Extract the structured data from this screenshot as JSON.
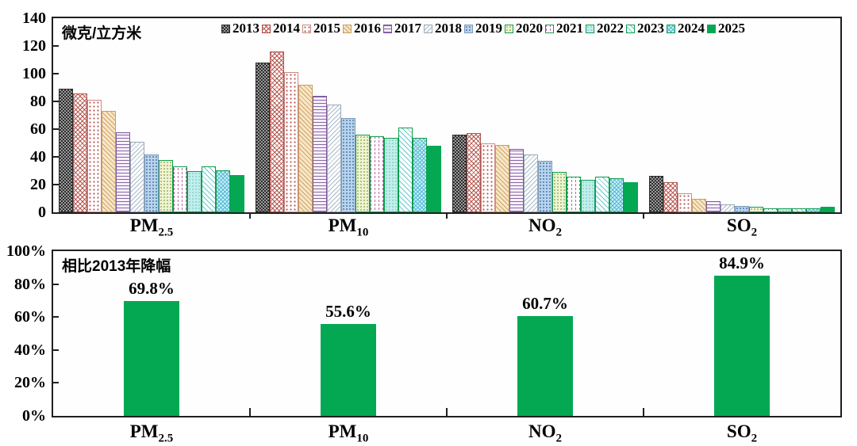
{
  "charts": {
    "top": {
      "unit_label": "微克/立方米"
    },
    "bottom": {
      "title": "相比2013年降幅"
    }
  },
  "accent_green": "#04a853",
  "axis_color": "#1f1f1f",
  "chart_data": [
    {
      "type": "bar",
      "title": "微克/立方米",
      "ylabel": "微克/立方米",
      "ylim": [
        0,
        140
      ],
      "yticks": [
        0,
        20,
        40,
        60,
        80,
        100,
        120,
        140
      ],
      "grid": false,
      "legend_position": "top-inside",
      "categories": [
        "PM2.5",
        "PM10",
        "NO2",
        "SO2"
      ],
      "categories_rich": [
        {
          "base": "PM",
          "sub": "2.5"
        },
        {
          "base": "PM",
          "sub": "10"
        },
        {
          "base": "NO",
          "sub": "2"
        },
        {
          "base": "SO",
          "sub": "2"
        }
      ],
      "series": [
        {
          "name": "2013",
          "values": [
            89,
            108,
            56,
            26.5
          ]
        },
        {
          "name": "2014",
          "values": [
            86,
            116,
            57,
            22
          ]
        },
        {
          "name": "2015",
          "values": [
            81,
            101,
            50,
            13.5
          ]
        },
        {
          "name": "2016",
          "values": [
            73,
            92,
            48.5,
            10
          ]
        },
        {
          "name": "2017",
          "values": [
            58,
            84,
            46,
            8
          ]
        },
        {
          "name": "2018",
          "values": [
            51,
            78,
            42,
            6
          ]
        },
        {
          "name": "2019",
          "values": [
            42,
            68,
            37,
            4.5
          ]
        },
        {
          "name": "2020",
          "values": [
            38,
            56,
            29,
            4
          ]
        },
        {
          "name": "2021",
          "values": [
            33,
            55,
            26,
            3
          ]
        },
        {
          "name": "2022",
          "values": [
            30,
            54,
            23.5,
            3
          ]
        },
        {
          "name": "2023",
          "values": [
            33,
            61,
            26,
            3
          ]
        },
        {
          "name": "2024",
          "values": [
            30.5,
            54,
            24.5,
            3
          ]
        },
        {
          "name": "2025",
          "values": [
            27,
            48,
            22,
            4
          ]
        }
      ]
    },
    {
      "type": "bar",
      "title": "相比2013年降幅",
      "ylim": [
        0,
        100
      ],
      "ytick_labels": [
        "0%",
        "20%",
        "40%",
        "60%",
        "80%",
        "100%"
      ],
      "ytick_values": [
        0,
        20,
        40,
        60,
        80,
        100
      ],
      "grid": false,
      "categories": [
        "PM2.5",
        "PM10",
        "NO2",
        "SO2"
      ],
      "categories_rich": [
        {
          "base": "PM",
          "sub": "2.5"
        },
        {
          "base": "PM",
          "sub": "10"
        },
        {
          "base": "NO",
          "sub": "2"
        },
        {
          "base": "SO",
          "sub": "2"
        }
      ],
      "values": [
        69.8,
        55.6,
        60.7,
        84.9
      ],
      "bar_labels": [
        "69.8%",
        "55.6%",
        "60.7%",
        "84.9%"
      ],
      "bar_color": "#04a853"
    }
  ]
}
